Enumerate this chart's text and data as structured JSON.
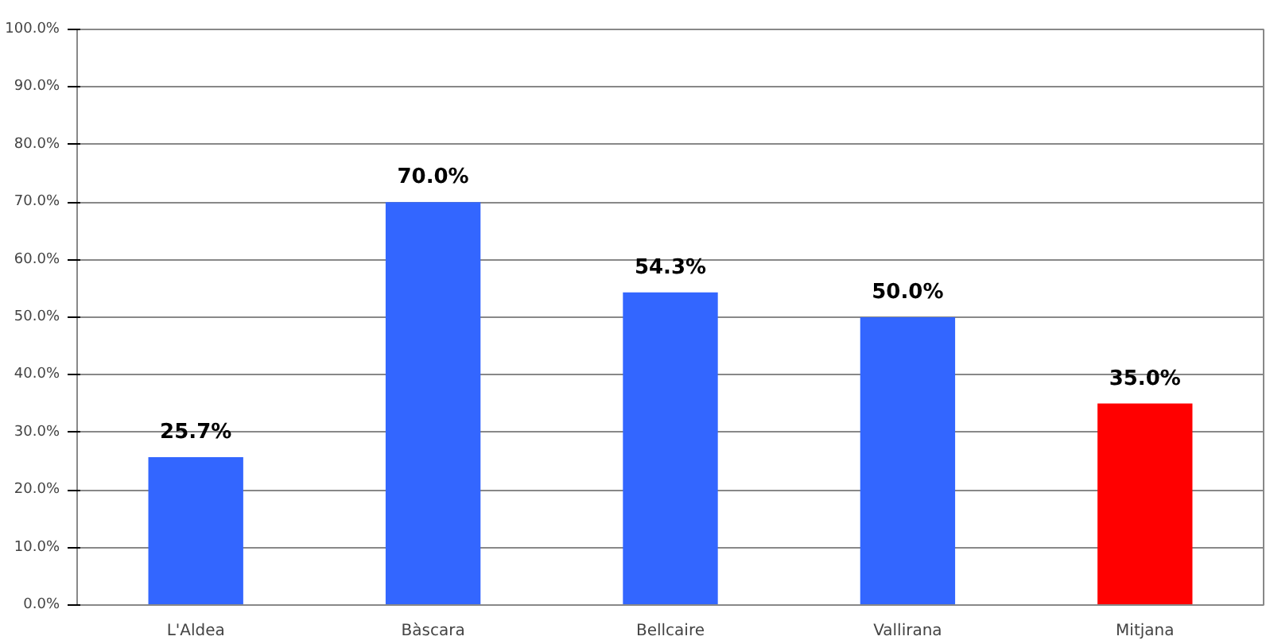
{
  "chart_data": {
    "type": "bar",
    "categories": [
      "L'Aldea",
      "Bàscara",
      "Bellcaire",
      "Vallirana",
      "Mitjana"
    ],
    "values": [
      25.7,
      70.0,
      54.3,
      50.0,
      35.0
    ],
    "colors": [
      "#3366ff",
      "#3366ff",
      "#3366ff",
      "#3366ff",
      "#ff0000"
    ],
    "value_labels": [
      "25.7%",
      "70.0%",
      "54.3%",
      "50.0%",
      "35.0%"
    ],
    "ylim": [
      0,
      100
    ],
    "yticks": [
      {
        "value": 0,
        "label": "0.0%"
      },
      {
        "value": 10,
        "label": "10.0%"
      },
      {
        "value": 20,
        "label": "20.0%"
      },
      {
        "value": 30,
        "label": "30.0%"
      },
      {
        "value": 40,
        "label": "40.0%"
      },
      {
        "value": 50,
        "label": "50.0%"
      },
      {
        "value": 60,
        "label": "60.0%"
      },
      {
        "value": 70,
        "label": "70.0%"
      },
      {
        "value": 80,
        "label": "80.0%"
      },
      {
        "value": 90,
        "label": "90.0%"
      },
      {
        "value": 100,
        "label": "100.0%"
      }
    ],
    "grid": "y"
  }
}
